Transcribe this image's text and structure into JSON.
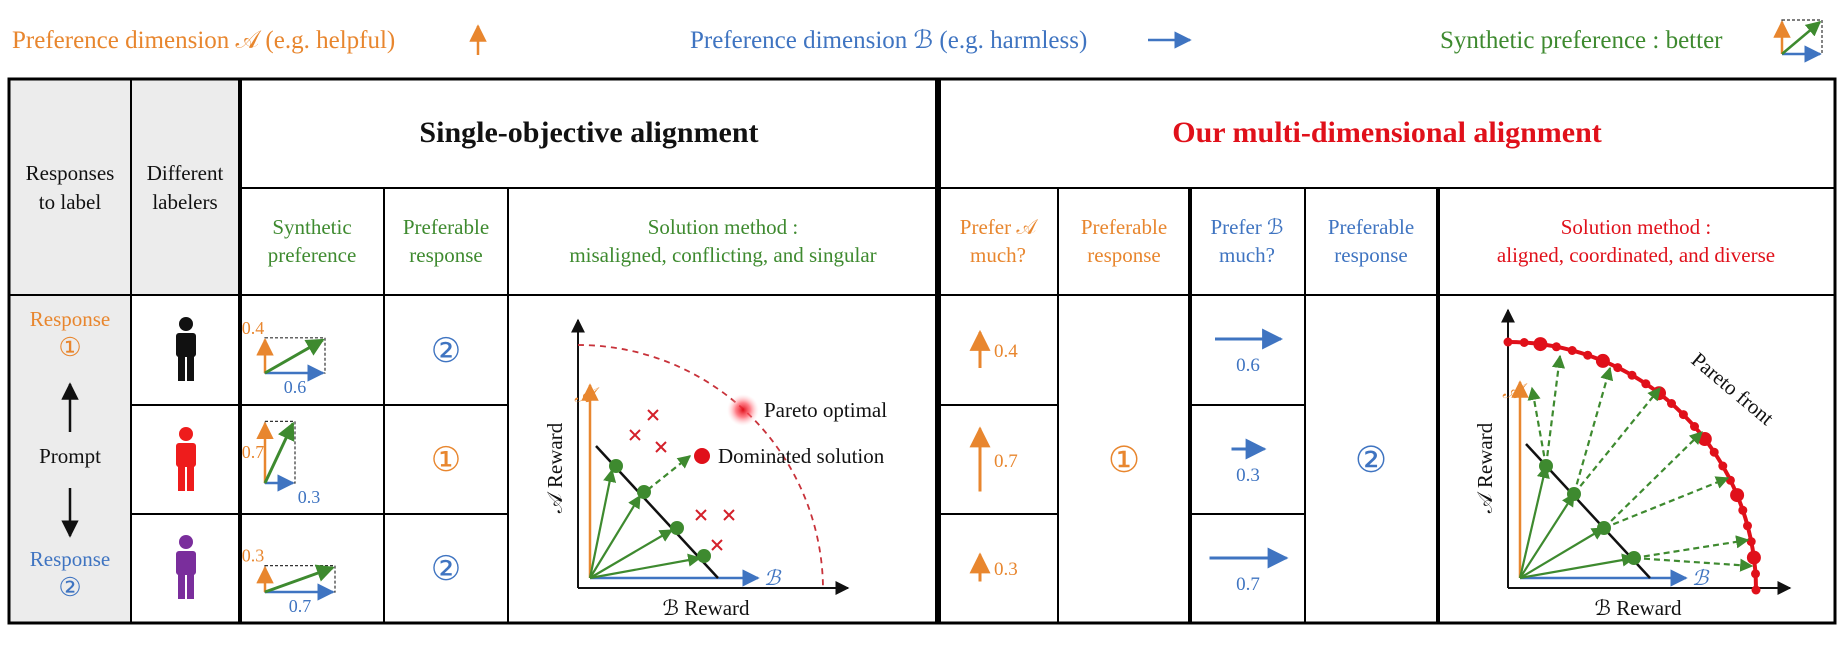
{
  "legend": {
    "dim_a": "Preference dimension 𝒜 (e.g. helpful)",
    "dim_b": "Preference dimension ℬ (e.g. harmless)",
    "synthetic": "Synthetic preference : better"
  },
  "left_columns": {
    "responses_line1": "Responses",
    "responses_line2": "to label",
    "labelers_line1": "Different",
    "labelers_line2": "labelers"
  },
  "single": {
    "title": "Single-objective alignment",
    "col_synthetic": [
      "Synthetic",
      "preference"
    ],
    "col_preferable": [
      "Preferable",
      "response"
    ],
    "col_method": [
      "Solution method :",
      "misaligned, conflicting, and singular"
    ],
    "rows": [
      {
        "a": "0.4",
        "b": "0.6",
        "choice": "②"
      },
      {
        "a": "0.7",
        "b": "0.3",
        "choice": "①"
      },
      {
        "a": "0.3",
        "b": "0.7",
        "choice": "②"
      }
    ],
    "plot": {
      "y_axis_symbol": "𝒜",
      "x_axis_symbol": "ℬ",
      "y_label": "𝒜 Reward",
      "x_label": "ℬ Reward",
      "pareto_optimal": "Pareto optimal",
      "dominated": "Dominated solution"
    }
  },
  "multi": {
    "title": "Our multi-dimensional alignment",
    "col_prefer_a": [
      "Prefer 𝒜",
      "much?"
    ],
    "col_pref_resp_a": [
      "Preferable",
      "response"
    ],
    "col_prefer_b": [
      "Prefer ℬ",
      "much?"
    ],
    "col_pref_resp_b": [
      "Preferable",
      "response"
    ],
    "col_method": [
      "Solution method :",
      "aligned, coordinated, and diverse"
    ],
    "a_values": [
      "0.4",
      "0.7",
      "0.3"
    ],
    "b_values": [
      "0.6",
      "0.3",
      "0.7"
    ],
    "choice_a": "①",
    "choice_b": "②",
    "plot": {
      "y_axis_symbol": "𝒜",
      "x_axis_symbol": "ℬ",
      "y_label": "𝒜 Reward",
      "x_label": "ℬ Reward",
      "front_label": "Pareto front"
    }
  },
  "prompt_col": {
    "response1": "Response",
    "response1_num": "①",
    "prompt": "Prompt",
    "response2": "Response",
    "response2_num": "②"
  },
  "colors": {
    "dim_a": "#e8862e",
    "dim_b": "#3f74c1",
    "synthetic": "#3e8a2f",
    "highlight": "#e0101a",
    "labeler_1": "#111111",
    "labeler_2": "#ee1c1c",
    "labeler_3": "#7a2e9c"
  }
}
